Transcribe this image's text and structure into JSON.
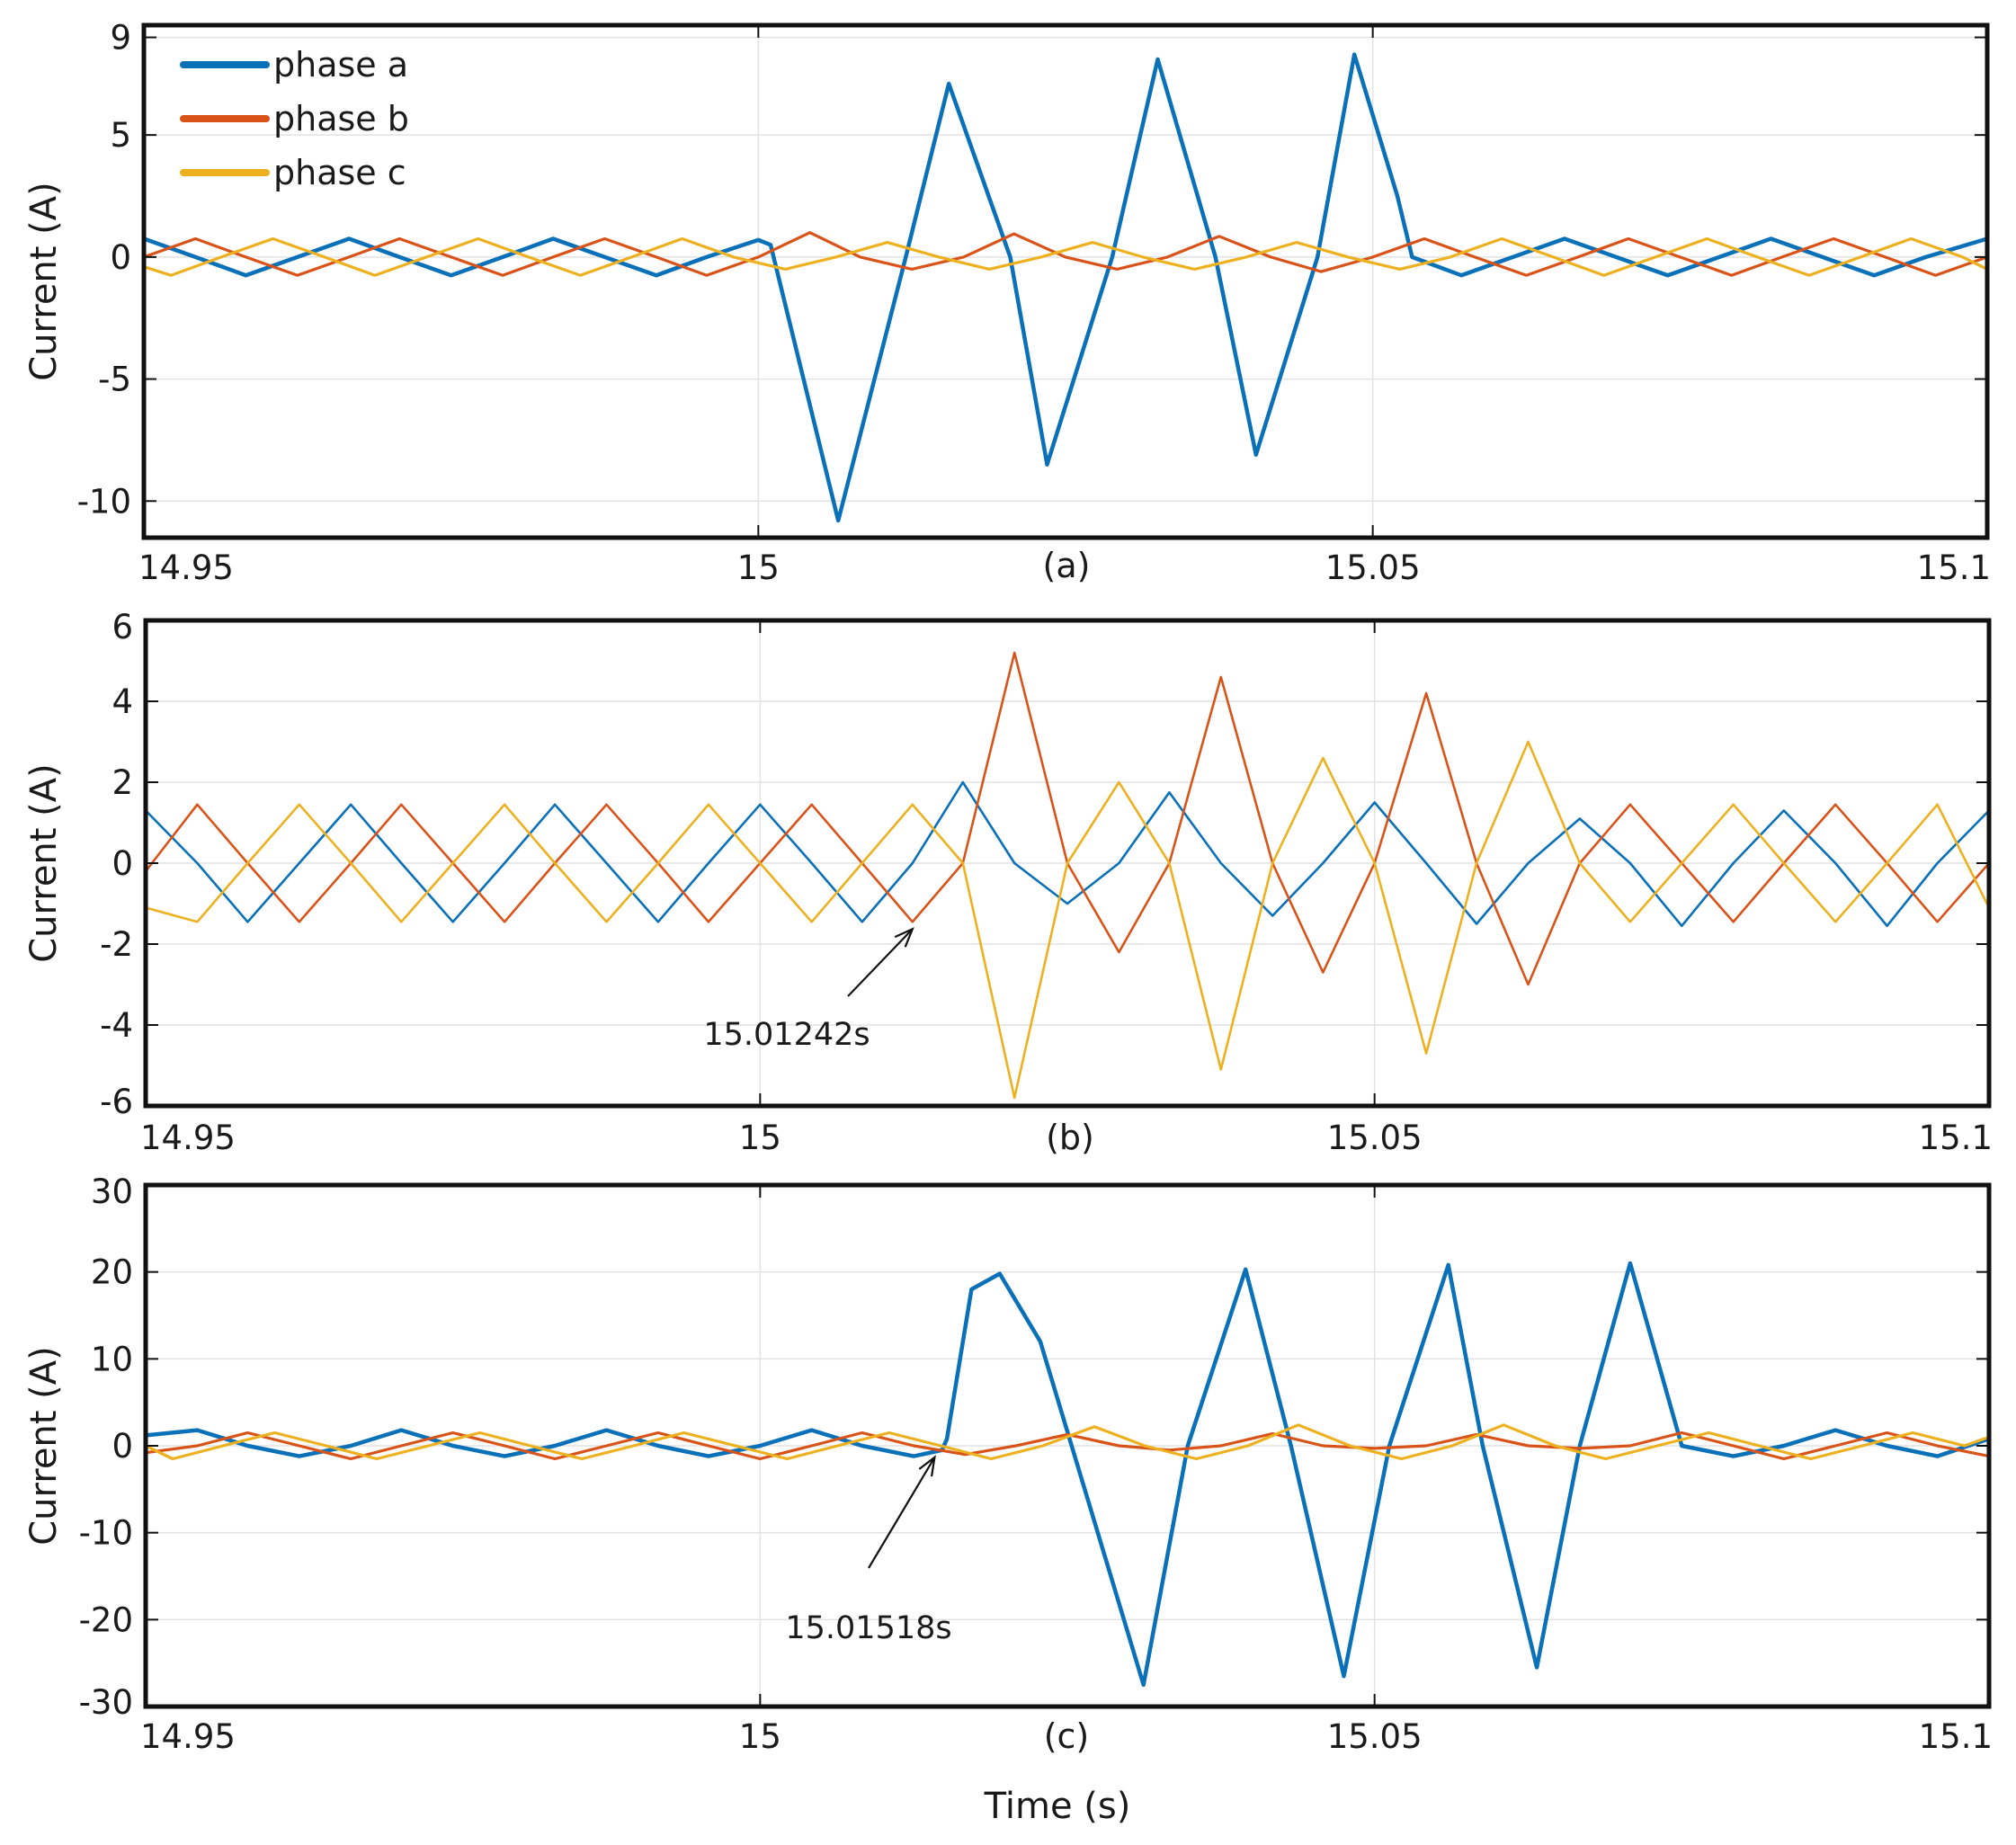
{
  "colors": {
    "phase_a": "#0a70b8",
    "phase_b": "#d95319",
    "phase_c": "#edb120"
  },
  "legend": [
    {
      "label": "phase a",
      "color": "#0a70b8"
    },
    {
      "label": "phase b",
      "color": "#d95319"
    },
    {
      "label": "phase c",
      "color": "#edb120"
    }
  ],
  "xlabel": "Time (s)",
  "chart_data": [
    {
      "type": "line",
      "panel_label": "(a)",
      "ylabel": "Current (A)",
      "xlim": [
        14.95,
        15.1
      ],
      "ylim": [
        -11.5,
        9.5
      ],
      "yticks": [
        "9",
        "5",
        "0",
        "-5",
        "-10"
      ],
      "xticks": [
        "14.95",
        "15",
        "15.05",
        "15.1"
      ],
      "grid": true,
      "legend_position": "top-left",
      "series": [
        {
          "name": "phase a",
          "color": "#0a70b8",
          "x": [
            14.95,
            14.9542,
            14.9583,
            14.9625,
            14.9667,
            14.9708,
            14.975,
            14.9792,
            14.9833,
            14.9875,
            14.9917,
            14.9958,
            15.0,
            15.001,
            15.0065,
            15.012,
            15.0155,
            15.0205,
            15.0235,
            15.0288,
            15.0325,
            15.0372,
            15.0405,
            15.0455,
            15.0485,
            15.052,
            15.0532,
            15.0572,
            15.0614,
            15.0656,
            15.0698,
            15.074,
            15.0782,
            15.0824,
            15.0866,
            15.0908,
            15.095,
            15.1
          ],
          "y": [
            0.75,
            0.0,
            -0.75,
            0.0,
            0.75,
            0.0,
            -0.75,
            0.0,
            0.75,
            0.0,
            -0.75,
            0.0,
            0.7,
            0.5,
            -10.8,
            0.0,
            7.1,
            0.0,
            -8.5,
            0.0,
            8.1,
            0.0,
            -8.1,
            0.0,
            8.3,
            2.5,
            0.0,
            -0.75,
            0.0,
            0.75,
            0.0,
            -0.75,
            0.0,
            0.75,
            0.0,
            -0.75,
            0.0,
            0.75
          ]
        },
        {
          "name": "phase b",
          "color": "#d95319",
          "x": [
            14.95,
            14.9542,
            14.9583,
            14.9625,
            14.9667,
            14.9708,
            14.975,
            14.9792,
            14.9833,
            14.9875,
            14.9917,
            14.9958,
            15.0,
            15.0042,
            15.0083,
            15.0125,
            15.0167,
            15.0208,
            15.025,
            15.0292,
            15.0333,
            15.0375,
            15.0417,
            15.0458,
            15.05,
            15.0542,
            15.0583,
            15.0625,
            15.0667,
            15.0708,
            15.075,
            15.0792,
            15.0833,
            15.0875,
            15.0917,
            15.0958,
            15.1
          ],
          "y": [
            0.0,
            0.75,
            0.0,
            -0.75,
            0.0,
            0.75,
            0.0,
            -0.75,
            0.0,
            0.75,
            0.0,
            -0.75,
            0.0,
            1.0,
            0.0,
            -0.5,
            0.0,
            0.95,
            0.0,
            -0.5,
            0.0,
            0.85,
            0.0,
            -0.6,
            0.0,
            0.75,
            0.0,
            -0.75,
            0.0,
            0.75,
            0.0,
            -0.75,
            0.0,
            0.75,
            0.0,
            -0.75,
            0.0
          ]
        },
        {
          "name": "phase c",
          "color": "#edb120",
          "x": [
            14.95,
            14.9522,
            14.9563,
            14.9605,
            14.9647,
            14.9688,
            14.973,
            14.9772,
            14.9813,
            14.9855,
            14.9897,
            14.9938,
            14.998,
            15.0022,
            15.0063,
            15.0105,
            15.0147,
            15.0188,
            15.023,
            15.0272,
            15.0313,
            15.0355,
            15.0397,
            15.0438,
            15.048,
            15.0522,
            15.0563,
            15.0605,
            15.0647,
            15.0688,
            15.073,
            15.0772,
            15.0813,
            15.0855,
            15.0897,
            15.0938,
            15.098,
            15.1
          ],
          "y": [
            -0.4,
            -0.75,
            0.0,
            0.75,
            0.0,
            -0.75,
            0.0,
            0.75,
            0.0,
            -0.75,
            0.0,
            0.75,
            0.0,
            -0.5,
            0.0,
            0.6,
            0.0,
            -0.5,
            0.0,
            0.6,
            0.0,
            -0.5,
            0.0,
            0.6,
            0.0,
            -0.5,
            0.0,
            0.75,
            0.0,
            -0.75,
            0.0,
            0.75,
            0.0,
            -0.75,
            0.0,
            0.75,
            0.0,
            -0.5
          ]
        }
      ]
    },
    {
      "type": "line",
      "panel_label": "(b)",
      "ylabel": "Current (A)",
      "xlim": [
        14.95,
        15.1
      ],
      "ylim": [
        -6,
        6
      ],
      "yticks": [
        "6",
        "4",
        "2",
        "0",
        "-2",
        "-4",
        "-6"
      ],
      "xticks": [
        "14.95",
        "15",
        "15.05",
        "15.1"
      ],
      "grid": true,
      "annotation": {
        "text": "15.01242s",
        "x": 15.0124,
        "y": -1.45
      },
      "series": [
        {
          "name": "phase a",
          "color": "#0a70b8",
          "x": [
            14.95,
            14.9542,
            14.9583,
            14.9625,
            14.9667,
            14.9708,
            14.975,
            14.9792,
            14.9833,
            14.9875,
            14.9917,
            14.9958,
            15.0,
            15.0042,
            15.0083,
            15.0124,
            15.0165,
            15.0207,
            15.025,
            15.0292,
            15.0333,
            15.0375,
            15.0417,
            15.0458,
            15.05,
            15.0542,
            15.0583,
            15.0625,
            15.0667,
            15.0708,
            15.075,
            15.0792,
            15.0833,
            15.0875,
            15.0917,
            15.0958,
            15.1
          ],
          "y": [
            1.3,
            0.0,
            -1.45,
            0.0,
            1.45,
            0.0,
            -1.45,
            0.0,
            1.45,
            0.0,
            -1.45,
            0.0,
            1.45,
            0.0,
            -1.45,
            0.0,
            2.0,
            0.0,
            -1.0,
            0.0,
            1.75,
            0.0,
            -1.3,
            0.0,
            1.5,
            0.0,
            -1.5,
            0.0,
            1.1,
            0.0,
            -1.55,
            0.0,
            1.3,
            0.0,
            -1.55,
            0.0,
            1.3
          ]
        },
        {
          "name": "phase b",
          "color": "#d95319",
          "x": [
            14.95,
            14.9542,
            14.9583,
            14.9625,
            14.9667,
            14.9708,
            14.975,
            14.9792,
            14.9833,
            14.9875,
            14.9917,
            14.9958,
            15.0,
            15.0042,
            15.0083,
            15.0124,
            15.0165,
            15.0207,
            15.025,
            15.0292,
            15.0333,
            15.0375,
            15.0417,
            15.0458,
            15.05,
            15.0542,
            15.0583,
            15.0625,
            15.0667,
            15.0708,
            15.075,
            15.0792,
            15.0833,
            15.0875,
            15.0917,
            15.0958,
            15.1
          ],
          "y": [
            -0.2,
            1.45,
            0.0,
            -1.45,
            0.0,
            1.45,
            0.0,
            -1.45,
            0.0,
            1.45,
            0.0,
            -1.45,
            0.0,
            1.45,
            0.0,
            -1.45,
            0.0,
            5.2,
            0.0,
            -2.2,
            0.0,
            4.6,
            0.0,
            -2.7,
            0.0,
            4.2,
            0.0,
            -3.0,
            0.0,
            1.45,
            0.0,
            -1.45,
            0.0,
            1.45,
            0.0,
            -1.45,
            0.0
          ]
        },
        {
          "name": "phase c",
          "color": "#edb120",
          "x": [
            14.95,
            14.9542,
            14.9583,
            14.9625,
            14.9667,
            14.9708,
            14.975,
            14.9792,
            14.9833,
            14.9875,
            14.9917,
            14.9958,
            15.0,
            15.0042,
            15.0083,
            15.0124,
            15.0165,
            15.0207,
            15.025,
            15.0292,
            15.0333,
            15.0375,
            15.0417,
            15.0458,
            15.05,
            15.0542,
            15.0583,
            15.0625,
            15.0667,
            15.0708,
            15.075,
            15.0792,
            15.0833,
            15.0875,
            15.0917,
            15.0958,
            15.1
          ],
          "y": [
            -1.1,
            -1.45,
            0.0,
            1.45,
            0.0,
            -1.45,
            0.0,
            1.45,
            0.0,
            -1.45,
            0.0,
            1.45,
            0.0,
            -1.45,
            0.0,
            1.45,
            0.0,
            -5.8,
            0.0,
            2.0,
            0.0,
            -5.1,
            0.0,
            2.6,
            0.0,
            -4.7,
            0.0,
            3.0,
            0.0,
            -1.45,
            0.0,
            1.45,
            0.0,
            -1.45,
            0.0,
            1.45,
            -1.1
          ]
        }
      ]
    },
    {
      "type": "line",
      "panel_label": "(c)",
      "ylabel": "Current (A)",
      "xlim": [
        14.95,
        15.1
      ],
      "ylim": [
        -30,
        30
      ],
      "yticks": [
        "30",
        "20",
        "10",
        "0",
        "-10",
        "-20",
        "-30"
      ],
      "xticks": [
        "14.95",
        "15",
        "15.05",
        "15.1"
      ],
      "grid": true,
      "annotation": {
        "text": "15.01518s",
        "x": 15.0142,
        "y": -0.5
      },
      "series": [
        {
          "name": "phase a",
          "color": "#0a70b8",
          "x": [
            14.95,
            14.9542,
            14.9583,
            14.9625,
            14.9667,
            14.9708,
            14.975,
            14.9792,
            14.9833,
            14.9875,
            14.9917,
            14.9958,
            15.0,
            15.0042,
            15.0083,
            15.0125,
            15.0148,
            15.0152,
            15.0172,
            15.0195,
            15.0228,
            15.0312,
            15.0348,
            15.0395,
            15.0432,
            15.0475,
            15.0512,
            15.056,
            15.0588,
            15.0632,
            15.0667,
            15.0708,
            15.075,
            15.0792,
            15.0833,
            15.0875,
            15.0917,
            15.0958,
            15.1
          ],
          "y": [
            1.2,
            1.8,
            0.0,
            -1.2,
            0.0,
            1.8,
            0.0,
            -1.2,
            0.0,
            1.8,
            0.0,
            -1.2,
            0.0,
            1.8,
            0.0,
            -1.2,
            -0.5,
            0.8,
            18.0,
            19.8,
            12.0,
            -27.5,
            0.0,
            20.3,
            0.0,
            -26.5,
            0.0,
            20.8,
            0.0,
            -25.5,
            0.0,
            21.0,
            0.0,
            -1.2,
            0.0,
            1.8,
            0.0,
            -1.2,
            0.8
          ]
        },
        {
          "name": "phase b",
          "color": "#d95319",
          "x": [
            14.95,
            14.9542,
            14.9583,
            14.9625,
            14.9667,
            14.9708,
            14.975,
            14.9792,
            14.9833,
            14.9875,
            14.9917,
            14.9958,
            15.0,
            15.0042,
            15.0083,
            15.0125,
            15.0167,
            15.0208,
            15.025,
            15.0292,
            15.0333,
            15.0375,
            15.0417,
            15.0458,
            15.05,
            15.0542,
            15.0583,
            15.0625,
            15.0667,
            15.0708,
            15.075,
            15.0792,
            15.0833,
            15.0875,
            15.0917,
            15.0958,
            15.1
          ],
          "y": [
            -0.8,
            0.0,
            1.5,
            0.0,
            -1.5,
            0.0,
            1.5,
            0.0,
            -1.5,
            0.0,
            1.5,
            0.0,
            -1.5,
            0.0,
            1.5,
            0.0,
            -1.0,
            0.0,
            1.3,
            0.0,
            -0.5,
            0.0,
            1.4,
            0.0,
            -0.3,
            0.0,
            1.3,
            0.0,
            -0.3,
            0.0,
            1.5,
            0.0,
            -1.5,
            0.0,
            1.5,
            0.0,
            -1.2
          ]
        },
        {
          "name": "phase c",
          "color": "#edb120",
          "x": [
            14.95,
            14.9522,
            14.9563,
            14.9605,
            14.9647,
            14.9688,
            14.973,
            14.9772,
            14.9813,
            14.9855,
            14.9897,
            14.9938,
            14.998,
            15.0022,
            15.0063,
            15.0105,
            15.0147,
            15.0188,
            15.023,
            15.0272,
            15.0313,
            15.0355,
            15.0397,
            15.0438,
            15.048,
            15.0522,
            15.0563,
            15.0605,
            15.0647,
            15.0688,
            15.073,
            15.0772,
            15.0813,
            15.0855,
            15.0897,
            15.0938,
            15.098,
            15.1
          ],
          "y": [
            0.0,
            -1.5,
            0.0,
            1.5,
            0.0,
            -1.5,
            0.0,
            1.5,
            0.0,
            -1.5,
            0.0,
            1.5,
            0.0,
            -1.5,
            0.0,
            1.5,
            0.0,
            -1.5,
            0.0,
            2.2,
            0.0,
            -1.5,
            0.0,
            2.4,
            0.0,
            -1.5,
            0.0,
            2.4,
            0.0,
            -1.5,
            0.0,
            1.5,
            0.0,
            -1.5,
            0.0,
            1.5,
            0.0,
            1.0
          ]
        }
      ]
    }
  ]
}
